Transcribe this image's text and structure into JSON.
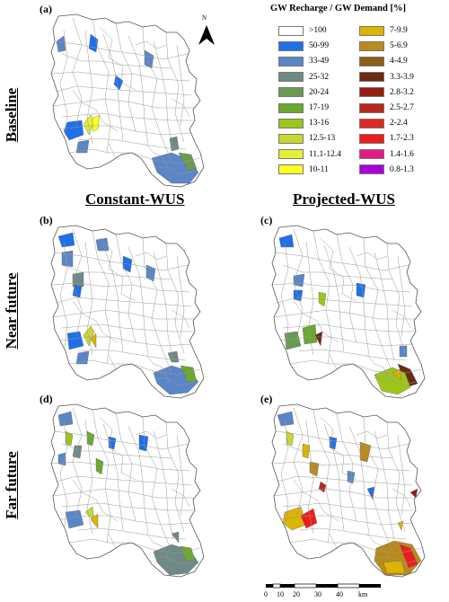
{
  "panels": [
    {
      "letter": "(a)"
    },
    {
      "letter": "(b)"
    },
    {
      "letter": "(c)"
    },
    {
      "letter": "(d)"
    },
    {
      "letter": "(e)"
    }
  ],
  "row_labels": {
    "baseline": "Baseline",
    "near_future": "Near future",
    "far_future": "Far future"
  },
  "column_titles": {
    "constant": "Constant-WUS",
    "projected": "Projected-WUS"
  },
  "north_label": "N",
  "legend": {
    "title": "GW Recharge / GW Demand [%]",
    "items": [
      {
        "label": ">100",
        "color": "#ffffff"
      },
      {
        "label": "50-99",
        "color": "#1f6fe8"
      },
      {
        "label": "33-49",
        "color": "#5a86c8"
      },
      {
        "label": "25-32",
        "color": "#6f8a86"
      },
      {
        "label": "20-24",
        "color": "#6a9a52"
      },
      {
        "label": "17-19",
        "color": "#6aa830"
      },
      {
        "label": "13-16",
        "color": "#9ec51a"
      },
      {
        "label": "12.5-13",
        "color": "#c8d830"
      },
      {
        "label": "11.1-12.4",
        "color": "#e6ef36"
      },
      {
        "label": "10-11",
        "color": "#ffff22"
      },
      {
        "label": "7-9.9",
        "color": "#ddb400"
      },
      {
        "label": "5-6.9",
        "color": "#b98a1c"
      },
      {
        "label": "4-4.9",
        "color": "#8f5d1a"
      },
      {
        "label": "3.3-3.9",
        "color": "#6b2a12"
      },
      {
        "label": "2.8-3.2",
        "color": "#951d12"
      },
      {
        "label": "2.5-2.7",
        "color": "#b52a1a"
      },
      {
        "label": "2-2.4",
        "color": "#dc2a22"
      },
      {
        "label": "1.7-2.3",
        "color": "#ee1c1c"
      },
      {
        "label": "1.4-1.6",
        "color": "#e21a84"
      },
      {
        "label": "0.8-1.3",
        "color": "#a800d8"
      }
    ]
  },
  "scale_bar": {
    "ticks": [
      "0",
      "10",
      "20",
      "30",
      "40"
    ],
    "unit": "km"
  }
}
